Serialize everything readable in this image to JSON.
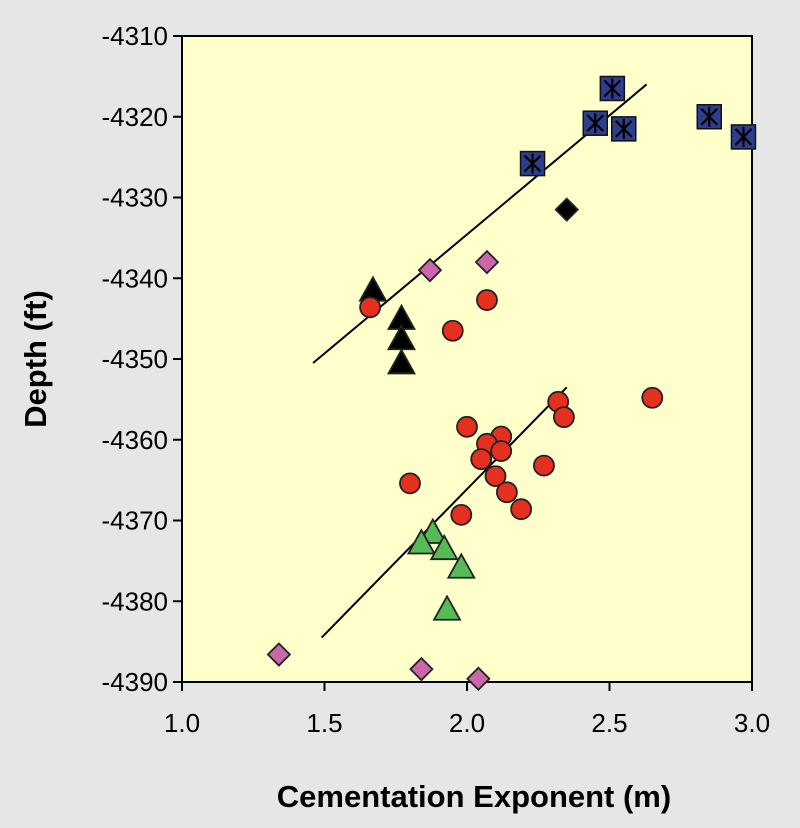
{
  "chart_data": {
    "type": "scatter",
    "title": "",
    "xlabel": "Cementation Exponent (m)",
    "ylabel": "Depth (ft)",
    "xlim": [
      1.0,
      3.0
    ],
    "ylim": [
      -4390,
      -4310
    ],
    "xticks": [
      1.0,
      1.5,
      2.0,
      2.5,
      3.0
    ],
    "xtick_labels": [
      "1.0",
      "1.5",
      "2.0",
      "2.5",
      "3.0"
    ],
    "yticks": [
      -4310,
      -4320,
      -4330,
      -4340,
      -4350,
      -4360,
      -4370,
      -4380,
      -4390
    ],
    "ytick_labels": [
      "-4310",
      "-4320",
      "-4330",
      "-4340",
      "-4350",
      "-4360",
      "-4370",
      "-4380",
      "-4390"
    ],
    "grid": false,
    "plot_background": "#ffffcc",
    "series": [
      {
        "marker": "square-star",
        "color": "#2e3e8f",
        "points": [
          {
            "x": 2.51,
            "y": -4316.5
          },
          {
            "x": 2.45,
            "y": -4320.8
          },
          {
            "x": 2.55,
            "y": -4321.5
          },
          {
            "x": 2.23,
            "y": -4325.8
          },
          {
            "x": 2.85,
            "y": -4320.0
          },
          {
            "x": 2.97,
            "y": -4322.5
          }
        ]
      },
      {
        "marker": "diamond",
        "color": "#000000",
        "points": [
          {
            "x": 2.35,
            "y": -4331.5
          }
        ]
      },
      {
        "marker": "diamond",
        "color": "#cc66aa",
        "points": [
          {
            "x": 1.87,
            "y": -4339.0
          },
          {
            "x": 2.07,
            "y": -4338.0
          },
          {
            "x": 1.34,
            "y": -4386.6
          },
          {
            "x": 1.84,
            "y": -4388.4
          },
          {
            "x": 2.04,
            "y": -4389.6
          }
        ]
      },
      {
        "marker": "triangle",
        "color": "#000000",
        "points": [
          {
            "x": 1.67,
            "y": -4341.5
          },
          {
            "x": 1.77,
            "y": -4345.0
          },
          {
            "x": 1.77,
            "y": -4347.5
          },
          {
            "x": 1.77,
            "y": -4350.5
          }
        ]
      },
      {
        "marker": "circle",
        "color": "#e53020",
        "points": [
          {
            "x": 1.66,
            "y": -4343.6
          },
          {
            "x": 1.95,
            "y": -4346.5
          },
          {
            "x": 2.07,
            "y": -4342.7
          },
          {
            "x": 2.65,
            "y": -4354.8
          },
          {
            "x": 2.32,
            "y": -4355.3
          },
          {
            "x": 2.34,
            "y": -4357.2
          },
          {
            "x": 2.0,
            "y": -4358.4
          },
          {
            "x": 2.12,
            "y": -4359.6
          },
          {
            "x": 2.07,
            "y": -4360.5
          },
          {
            "x": 2.12,
            "y": -4361.4
          },
          {
            "x": 2.05,
            "y": -4362.4
          },
          {
            "x": 2.27,
            "y": -4363.2
          },
          {
            "x": 2.1,
            "y": -4364.5
          },
          {
            "x": 1.8,
            "y": -4365.4
          },
          {
            "x": 2.14,
            "y": -4366.5
          },
          {
            "x": 2.19,
            "y": -4368.6
          },
          {
            "x": 1.98,
            "y": -4369.3
          }
        ]
      },
      {
        "marker": "triangle",
        "color": "#55bb55",
        "points": [
          {
            "x": 1.88,
            "y": -4371.5
          },
          {
            "x": 1.84,
            "y": -4372.8
          },
          {
            "x": 1.92,
            "y": -4373.5
          },
          {
            "x": 1.98,
            "y": -4375.8
          },
          {
            "x": 1.93,
            "y": -4381.0
          }
        ]
      }
    ],
    "trend_lines": [
      {
        "x1": 1.46,
        "y1": -4350.5,
        "x2": 2.63,
        "y2": -4316.0
      },
      {
        "x1": 1.49,
        "y1": -4384.5,
        "x2": 2.35,
        "y2": -4353.5
      }
    ]
  }
}
